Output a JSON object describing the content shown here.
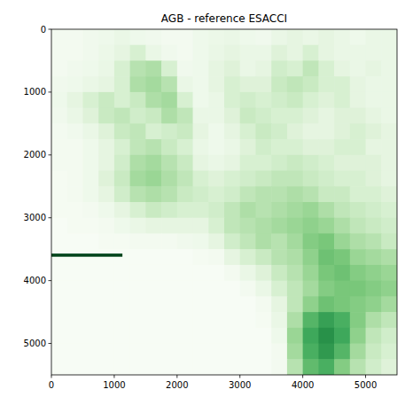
{
  "chart_data": {
    "type": "heatmap",
    "title": "AGB - reference ESACCI",
    "xlim": [
      0,
      5500
    ],
    "ylim": [
      5500,
      0
    ],
    "xticks": [
      0,
      1000,
      2000,
      3000,
      4000,
      5000
    ],
    "yticks": [
      0,
      1000,
      2000,
      3000,
      4000,
      5000
    ],
    "x_edges": [
      0,
      250,
      500,
      750,
      1000,
      1250,
      1500,
      1750,
      2000,
      2250,
      2500,
      2750,
      3000,
      3250,
      3500,
      3750,
      4000,
      4250,
      4500,
      4750,
      5000,
      5250,
      5500
    ],
    "y_edges": [
      0,
      250,
      500,
      750,
      1000,
      1250,
      1500,
      1750,
      2000,
      2250,
      2500,
      2750,
      3000,
      3250,
      3500,
      3750,
      4000,
      4250,
      4500,
      4750,
      5000,
      5250,
      5500
    ],
    "zlim": [
      0,
      330
    ],
    "cells": [
      [
        10,
        10,
        15,
        20,
        30,
        20,
        15,
        10,
        10,
        20,
        25,
        30,
        20,
        15,
        30,
        40,
        30,
        40,
        30,
        20,
        30,
        30
      ],
      [
        10,
        10,
        15,
        25,
        40,
        60,
        30,
        15,
        10,
        20,
        30,
        40,
        30,
        30,
        50,
        40,
        60,
        40,
        30,
        30,
        30,
        30
      ],
      [
        10,
        15,
        20,
        30,
        60,
        100,
        110,
        60,
        15,
        20,
        40,
        50,
        30,
        40,
        70,
        60,
        90,
        60,
        40,
        30,
        40,
        30
      ],
      [
        15,
        20,
        30,
        40,
        60,
        110,
        120,
        100,
        30,
        20,
        40,
        60,
        50,
        50,
        80,
        90,
        80,
        60,
        60,
        40,
        30,
        30
      ],
      [
        20,
        40,
        60,
        80,
        60,
        80,
        110,
        120,
        60,
        20,
        30,
        60,
        70,
        60,
        70,
        80,
        60,
        50,
        60,
        40,
        30,
        30
      ],
      [
        15,
        30,
        50,
        80,
        90,
        70,
        80,
        110,
        90,
        30,
        30,
        50,
        80,
        70,
        60,
        60,
        50,
        40,
        50,
        50,
        40,
        30
      ],
      [
        10,
        15,
        30,
        50,
        80,
        90,
        60,
        70,
        80,
        40,
        20,
        40,
        60,
        80,
        70,
        50,
        40,
        40,
        50,
        60,
        50,
        40
      ],
      [
        10,
        10,
        20,
        40,
        60,
        90,
        100,
        80,
        60,
        30,
        20,
        30,
        50,
        70,
        60,
        60,
        50,
        50,
        60,
        60,
        40,
        40
      ],
      [
        10,
        10,
        20,
        40,
        70,
        110,
        120,
        100,
        80,
        40,
        30,
        40,
        60,
        60,
        70,
        80,
        70,
        60,
        50,
        50,
        50,
        40
      ],
      [
        5,
        10,
        20,
        50,
        80,
        120,
        130,
        110,
        90,
        60,
        50,
        60,
        70,
        80,
        90,
        90,
        80,
        70,
        60,
        60,
        50,
        40
      ],
      [
        5,
        10,
        20,
        40,
        70,
        100,
        110,
        100,
        80,
        70,
        60,
        70,
        90,
        100,
        100,
        110,
        100,
        80,
        80,
        60,
        60,
        50
      ],
      [
        5,
        5,
        10,
        20,
        40,
        60,
        80,
        70,
        60,
        60,
        70,
        90,
        110,
        100,
        110,
        120,
        130,
        110,
        90,
        80,
        70,
        60
      ],
      [
        0,
        5,
        5,
        10,
        20,
        30,
        40,
        40,
        40,
        40,
        60,
        90,
        100,
        110,
        120,
        130,
        140,
        130,
        110,
        90,
        80,
        70
      ],
      [
        0,
        0,
        0,
        5,
        5,
        10,
        10,
        10,
        15,
        20,
        40,
        70,
        90,
        110,
        100,
        120,
        150,
        160,
        130,
        110,
        100,
        80
      ],
      [
        0,
        0,
        0,
        0,
        0,
        0,
        0,
        0,
        0,
        5,
        10,
        40,
        60,
        80,
        100,
        110,
        140,
        170,
        160,
        130,
        120,
        110
      ],
      [
        0,
        0,
        0,
        0,
        0,
        0,
        0,
        0,
        0,
        0,
        0,
        10,
        30,
        50,
        80,
        100,
        130,
        160,
        170,
        150,
        140,
        130
      ],
      [
        0,
        0,
        0,
        0,
        0,
        0,
        0,
        0,
        0,
        0,
        0,
        0,
        10,
        30,
        60,
        90,
        120,
        150,
        160,
        160,
        150,
        140
      ],
      [
        0,
        0,
        0,
        0,
        0,
        0,
        0,
        0,
        0,
        0,
        0,
        0,
        0,
        10,
        40,
        90,
        140,
        170,
        160,
        150,
        140,
        120
      ],
      [
        0,
        0,
        0,
        0,
        0,
        0,
        0,
        0,
        0,
        0,
        0,
        0,
        0,
        5,
        30,
        110,
        190,
        220,
        200,
        150,
        110,
        90
      ],
      [
        0,
        0,
        0,
        0,
        0,
        0,
        0,
        0,
        0,
        0,
        0,
        0,
        0,
        0,
        20,
        130,
        210,
        240,
        210,
        140,
        90,
        70
      ],
      [
        0,
        0,
        0,
        0,
        0,
        0,
        0,
        0,
        0,
        0,
        0,
        0,
        0,
        0,
        10,
        120,
        200,
        230,
        190,
        120,
        80,
        60
      ],
      [
        0,
        0,
        0,
        0,
        0,
        0,
        0,
        0,
        0,
        0,
        0,
        0,
        0,
        0,
        10,
        100,
        180,
        200,
        150,
        100,
        70,
        50
      ]
    ],
    "stripe": {
      "x": [
        0,
        1130
      ],
      "y": [
        3570,
        3620
      ],
      "value": 330
    }
  }
}
